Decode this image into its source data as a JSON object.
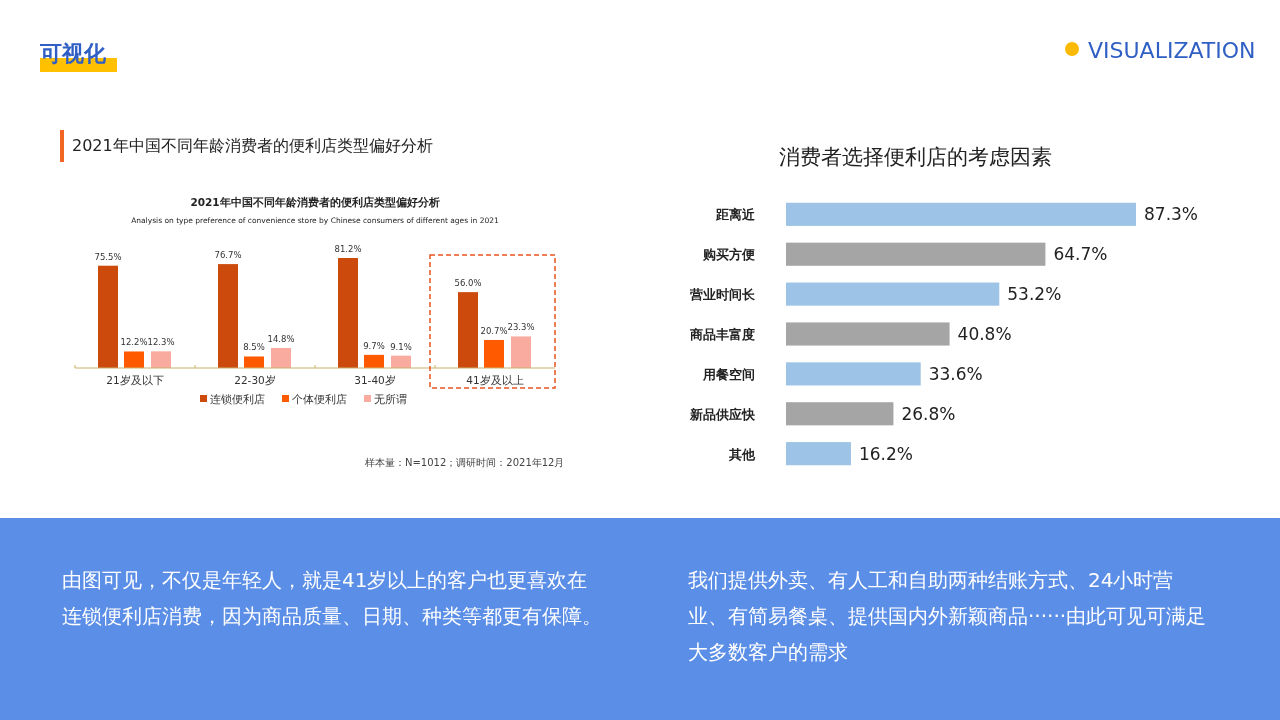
{
  "chart_data": [
    {
      "type": "bar",
      "title": "2021年中国不同年龄消费者的便利店类型偏好分析",
      "subtitle": "Analysis on type preference of convenience store by Chinese consumers of different ages in 2021",
      "annotations": [
        "可视化",
        "VISUALIZATION",
        "2021年中国不同年龄消费者的便利店类型偏好分析",
        "样本量：N=1012；调研时间：2021年12月",
        "由图可见，不仅是年轻人，就是41岁以上的客户也更喜欢在连锁便利店消费，因为商品质量、日期、种类等都更有保障。"
      ],
      "categories": [
        "21岁及以下",
        "22-30岁",
        "31-40岁",
        "41岁及以上"
      ],
      "series": [
        {
          "name": "连锁便利店",
          "color": "#cc4a0c",
          "values": [
            75.5,
            76.7,
            81.2,
            56.0
          ],
          "value_labels": [
            "75.5%",
            "76.7%",
            "81.2%",
            "56.0%"
          ]
        },
        {
          "name": "个体便利店",
          "color": "#ff5a00",
          "values": [
            12.2,
            8.5,
            9.7,
            20.7
          ],
          "value_labels": [
            "12.2%",
            "8.5%",
            "9.7%",
            "20.7%"
          ]
        },
        {
          "name": "无所谓",
          "color": "#f9aba0",
          "values": [
            12.3,
            14.8,
            9.1,
            23.3
          ],
          "value_labels": [
            "12.3%",
            "14.8%",
            "9.1%",
            "23.3%"
          ]
        }
      ],
      "legend": "bottom"
    },
    {
      "type": "bar",
      "orientation": "horizontal",
      "title": "消费者选择便利店的考虑因素",
      "annotations": [
        "我们提供外卖、有人工和自助两种结账方式、24小时营业、有简易餐桌、提供国内外新颖商品······由此可见可满足大多数客户的需求"
      ],
      "categories": [
        "距离近",
        "购买方便",
        "营业时间长",
        "商品丰富度",
        "用餐空间",
        "新品供应快",
        "其他"
      ],
      "values": [
        87.3,
        64.7,
        53.2,
        40.8,
        33.6,
        26.8,
        16.2
      ],
      "value_labels": [
        "87.3%",
        "64.7%",
        "53.2%",
        "40.8%",
        "33.6%",
        "26.8%",
        "16.2%"
      ],
      "colors": [
        "#9dc3e6",
        "#a5a5a5",
        "#9dc3e6",
        "#a5a5a5",
        "#9dc3e6",
        "#a5a5a5",
        "#9dc3e6"
      ]
    }
  ]
}
